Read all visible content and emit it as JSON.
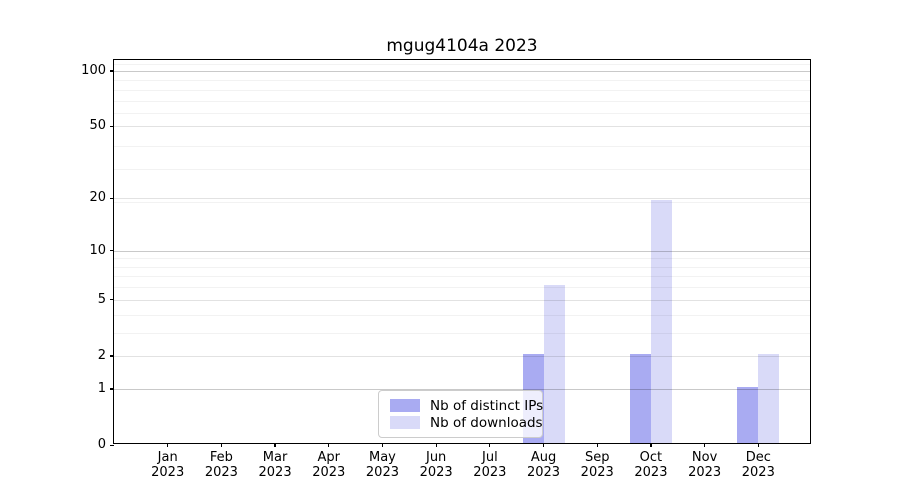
{
  "figure": {
    "background": "#ffffff"
  },
  "chart_data": {
    "type": "bar",
    "title": "mgug4104a 2023",
    "categories": [
      "Jan",
      "Feb",
      "Mar",
      "Apr",
      "May",
      "Jun",
      "Jul",
      "Aug",
      "Sep",
      "Oct",
      "Nov",
      "Dec"
    ],
    "year": "2023",
    "series": [
      {
        "name": "Nb of distinct IPs",
        "color": "#a9abf2",
        "values": [
          0,
          0,
          0,
          0,
          0,
          0,
          0,
          2,
          0,
          2,
          0,
          1
        ]
      },
      {
        "name": "Nb of downloads",
        "color": "#d9daf8",
        "values": [
          0,
          0,
          0,
          0,
          0,
          0,
          0,
          6,
          0,
          19,
          0,
          2
        ]
      }
    ],
    "yticks": [
      0,
      1,
      2,
      5,
      10,
      20,
      50,
      100
    ],
    "ylabel": "",
    "xlabel": "",
    "scale": "log10(value+1)",
    "ylim": [
      0,
      115
    ],
    "grid": true,
    "legend_position": "lower center"
  }
}
